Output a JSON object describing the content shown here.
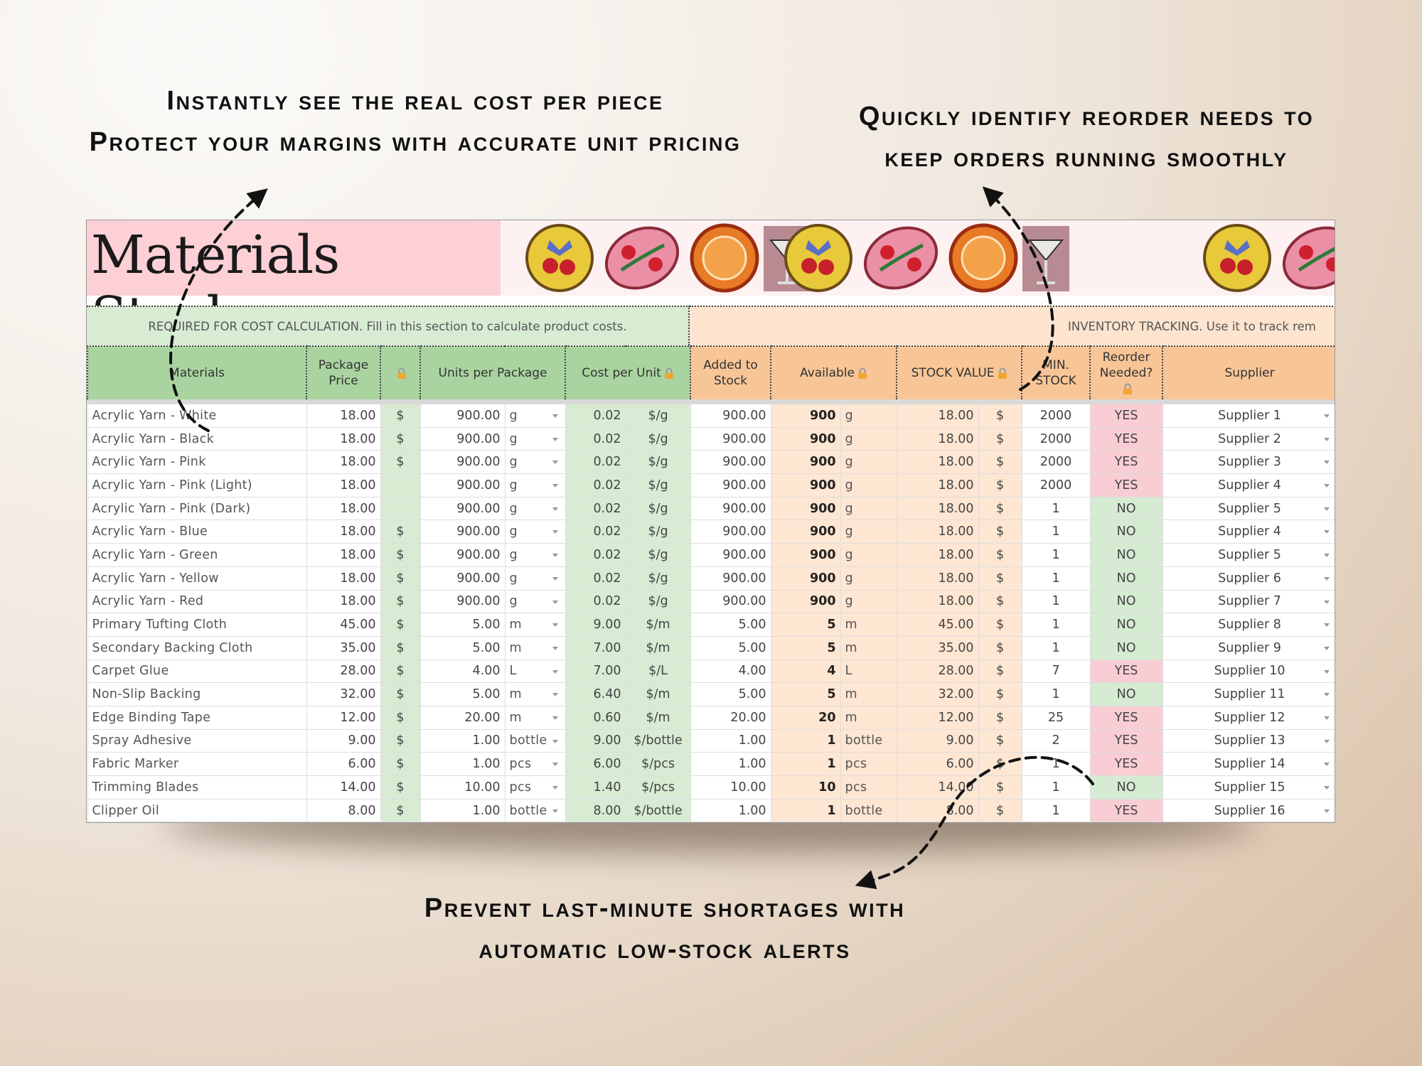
{
  "annotations": {
    "top_left": [
      "Instantly see the real cost per piece",
      "Protect your margins with accurate unit pricing"
    ],
    "top_right": [
      "Quickly identify reorder needs to",
      "keep orders running smoothly"
    ],
    "bottom": [
      "Prevent last-minute shortages with",
      "automatic low-stock alerts"
    ]
  },
  "sheet": {
    "title": "Materials Stock",
    "section_left": "REQUIRED FOR COST CALCULATION. Fill in this section to calculate product costs.",
    "section_right": "INVENTORY TRACKING. Use it to track rem",
    "headers": [
      "Materials",
      "Package Price",
      "Units per Package",
      "Cost per  Unit",
      "Added to Stock",
      "Available",
      "STOCK VALUE",
      "MIN. STOCK",
      "Reorder Needed?",
      "Supplier"
    ],
    "rows": [
      {
        "material": "Acrylic Yarn - White",
        "price": "18.00",
        "currency": "$",
        "units": "900.00",
        "unit": "g",
        "cost": "0.02",
        "cost_unit": "$/g",
        "added": "900.00",
        "available": "900",
        "available_unit": "g",
        "value": "18.00",
        "value_currency": "$",
        "min": "2000",
        "reorder": "YES",
        "supplier": "Supplier 1"
      },
      {
        "material": "Acrylic Yarn - Black",
        "price": "18.00",
        "currency": "$",
        "units": "900.00",
        "unit": "g",
        "cost": "0.02",
        "cost_unit": "$/g",
        "added": "900.00",
        "available": "900",
        "available_unit": "g",
        "value": "18.00",
        "value_currency": "$",
        "min": "2000",
        "reorder": "YES",
        "supplier": "Supplier 2"
      },
      {
        "material": "Acrylic Yarn - Pink",
        "price": "18.00",
        "currency": "$",
        "units": "900.00",
        "unit": "g",
        "cost": "0.02",
        "cost_unit": "$/g",
        "added": "900.00",
        "available": "900",
        "available_unit": "g",
        "value": "18.00",
        "value_currency": "$",
        "min": "2000",
        "reorder": "YES",
        "supplier": "Supplier 3"
      },
      {
        "material": "Acrylic Yarn - Pink (Light)",
        "price": "18.00",
        "units": "900.00",
        "unit": "g",
        "cost": "0.02",
        "cost_unit": "$/g",
        "added": "900.00",
        "available": "900",
        "available_unit": "g",
        "value": "18.00",
        "value_currency": "$",
        "min": "2000",
        "reorder": "YES",
        "supplier": "Supplier 4"
      },
      {
        "material": "Acrylic Yarn - Pink (Dark)",
        "price": "18.00",
        "units": "900.00",
        "unit": "g",
        "cost": "0.02",
        "cost_unit": "$/g",
        "added": "900.00",
        "available": "900",
        "available_unit": "g",
        "value": "18.00",
        "value_currency": "$",
        "min": "1",
        "reorder": "NO",
        "supplier": "Supplier 5"
      },
      {
        "material": "Acrylic Yarn - Blue",
        "price": "18.00",
        "currency": "$",
        "units": "900.00",
        "unit": "g",
        "cost": "0.02",
        "cost_unit": "$/g",
        "added": "900.00",
        "available": "900",
        "available_unit": "g",
        "value": "18.00",
        "value_currency": "$",
        "min": "1",
        "reorder": "NO",
        "supplier": "Supplier 4"
      },
      {
        "material": "Acrylic Yarn - Green",
        "price": "18.00",
        "currency": "$",
        "units": "900.00",
        "unit": "g",
        "cost": "0.02",
        "cost_unit": "$/g",
        "added": "900.00",
        "available": "900",
        "available_unit": "g",
        "value": "18.00",
        "value_currency": "$",
        "min": "1",
        "reorder": "NO",
        "supplier": "Supplier 5"
      },
      {
        "material": "Acrylic Yarn - Yellow",
        "price": "18.00",
        "currency": "$",
        "units": "900.00",
        "unit": "g",
        "cost": "0.02",
        "cost_unit": "$/g",
        "added": "900.00",
        "available": "900",
        "available_unit": "g",
        "value": "18.00",
        "value_currency": "$",
        "min": "1",
        "reorder": "NO",
        "supplier": "Supplier 6"
      },
      {
        "material": "Acrylic Yarn - Red",
        "price": "18.00",
        "currency": "$",
        "units": "900.00",
        "unit": "g",
        "cost": "0.02",
        "cost_unit": "$/g",
        "added": "900.00",
        "available": "900",
        "available_unit": "g",
        "value": "18.00",
        "value_currency": "$",
        "min": "1",
        "reorder": "NO",
        "supplier": "Supplier 7"
      },
      {
        "material": "Primary Tufting Cloth",
        "price": "45.00",
        "currency": "$",
        "units": "5.00",
        "unit": "m",
        "cost": "9.00",
        "cost_unit": "$/m",
        "added": "5.00",
        "available": "5",
        "available_unit": "m",
        "value": "45.00",
        "value_currency": "$",
        "min": "1",
        "reorder": "NO",
        "supplier": "Supplier 8"
      },
      {
        "material": "Secondary Backing Cloth",
        "price": "35.00",
        "currency": "$",
        "units": "5.00",
        "unit": "m",
        "cost": "7.00",
        "cost_unit": "$/m",
        "added": "5.00",
        "available": "5",
        "available_unit": "m",
        "value": "35.00",
        "value_currency": "$",
        "min": "1",
        "reorder": "NO",
        "supplier": "Supplier 9"
      },
      {
        "material": "Carpet Glue",
        "price": "28.00",
        "currency": "$",
        "units": "4.00",
        "unit": "L",
        "cost": "7.00",
        "cost_unit": "$/L",
        "added": "4.00",
        "available": "4",
        "available_unit": "L",
        "value": "28.00",
        "value_currency": "$",
        "min": "7",
        "reorder": "YES",
        "supplier": "Supplier 10"
      },
      {
        "material": "Non-Slip Backing",
        "price": "32.00",
        "currency": "$",
        "units": "5.00",
        "unit": "m",
        "cost": "6.40",
        "cost_unit": "$/m",
        "added": "5.00",
        "available": "5",
        "available_unit": "m",
        "value": "32.00",
        "value_currency": "$",
        "min": "1",
        "reorder": "NO",
        "supplier": "Supplier 11"
      },
      {
        "material": "Edge Binding Tape",
        "price": "12.00",
        "currency": "$",
        "units": "20.00",
        "unit": "m",
        "cost": "0.60",
        "cost_unit": "$/m",
        "added": "20.00",
        "available": "20",
        "available_unit": "m",
        "value": "12.00",
        "value_currency": "$",
        "min": "25",
        "reorder": "YES",
        "supplier": "Supplier 12"
      },
      {
        "material": "Spray Adhesive",
        "price": "9.00",
        "currency": "$",
        "units": "1.00",
        "unit": "bottle",
        "cost": "9.00",
        "cost_unit": "$/bottle",
        "added": "1.00",
        "available": "1",
        "available_unit": "bottle",
        "value": "9.00",
        "value_currency": "$",
        "min": "2",
        "reorder": "YES",
        "supplier": "Supplier 13"
      },
      {
        "material": "Fabric Marker",
        "price": "6.00",
        "currency": "$",
        "units": "1.00",
        "unit": "pcs",
        "cost": "6.00",
        "cost_unit": "$/pcs",
        "added": "1.00",
        "available": "1",
        "available_unit": "pcs",
        "value": "6.00",
        "value_currency": "$",
        "min": "1",
        "reorder": "YES",
        "supplier": "Supplier 14"
      },
      {
        "material": "Trimming Blades",
        "price": "14.00",
        "currency": "$",
        "units": "10.00",
        "unit": "pcs",
        "cost": "1.40",
        "cost_unit": "$/pcs",
        "added": "10.00",
        "available": "10",
        "available_unit": "pcs",
        "value": "14.00",
        "value_currency": "$",
        "min": "1",
        "reorder": "NO",
        "supplier": "Supplier 15"
      },
      {
        "material": "Clipper Oil",
        "price": "8.00",
        "currency": "$",
        "units": "1.00",
        "unit": "bottle",
        "cost": "8.00",
        "cost_unit": "$/bottle",
        "added": "1.00",
        "available": "1",
        "available_unit": "bottle",
        "value": "8.00",
        "value_currency": "$",
        "min": "1",
        "reorder": "YES",
        "supplier": "Supplier 16"
      }
    ]
  }
}
